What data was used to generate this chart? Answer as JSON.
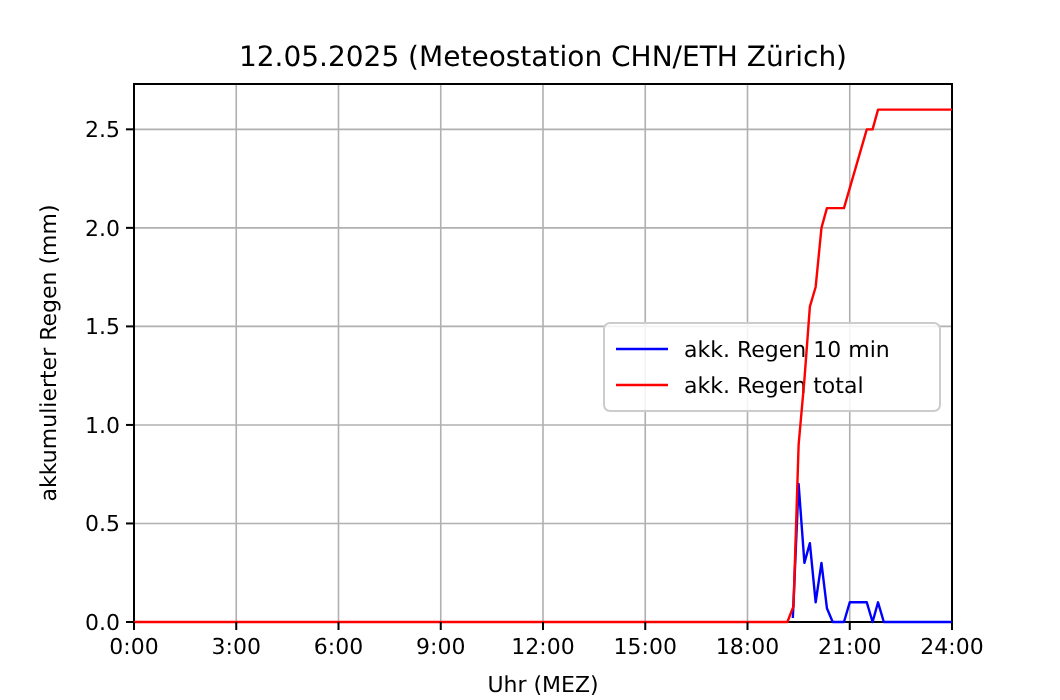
{
  "chart_data": {
    "type": "line",
    "title": "12.05.2025  (Meteostation CHN/ETH Zürich)",
    "xlabel": "Uhr (MEZ)",
    "ylabel": "akkumulierter Regen (mm)",
    "xlim": [
      0,
      24
    ],
    "xticks": [
      {
        "value": 0,
        "label": "0:00"
      },
      {
        "value": 3,
        "label": "3:00"
      },
      {
        "value": 6,
        "label": "6:00"
      },
      {
        "value": 9,
        "label": "9:00"
      },
      {
        "value": 12,
        "label": "12:00"
      },
      {
        "value": 15,
        "label": "15:00"
      },
      {
        "value": 18,
        "label": "18:00"
      },
      {
        "value": 21,
        "label": "21:00"
      },
      {
        "value": 24,
        "label": "24:00"
      }
    ],
    "ylim": [
      0,
      2.73
    ],
    "yticks": [
      {
        "value": 0,
        "label": "0.0"
      },
      {
        "value": 0.5,
        "label": "0.5"
      },
      {
        "value": 1,
        "label": "1.0"
      },
      {
        "value": 1.5,
        "label": "1.5"
      },
      {
        "value": 2,
        "label": "2.0"
      },
      {
        "value": 2.5,
        "label": "2.5"
      }
    ],
    "grid": true,
    "legend": "right",
    "line_style": "solid",
    "marker": "none",
    "series": [
      {
        "name": "akk. Regen 10 min",
        "color": "#0000ff",
        "x": [
          19.33,
          19.5,
          19.67,
          19.83,
          20.0,
          20.17,
          20.33,
          20.5,
          20.83,
          21.0,
          21.5,
          21.67,
          21.83,
          22.0,
          24
        ],
        "values": [
          0.02,
          0.7,
          0.3,
          0.4,
          0.1,
          0.3,
          0.07,
          0,
          0,
          0.1,
          0.1,
          0,
          0.1,
          0,
          0
        ]
      },
      {
        "name": "akk. Regen total",
        "color": "#ff0000",
        "x": [
          0,
          19.17,
          19.35,
          19.5,
          19.67,
          19.83,
          20.0,
          20.17,
          20.33,
          20.83,
          21.5,
          21.67,
          21.83,
          24
        ],
        "values": [
          0,
          0,
          0.08,
          0.9,
          1.23,
          1.6,
          1.7,
          2.0,
          2.1,
          2.1,
          2.5,
          2.5,
          2.6,
          2.6
        ]
      }
    ]
  }
}
